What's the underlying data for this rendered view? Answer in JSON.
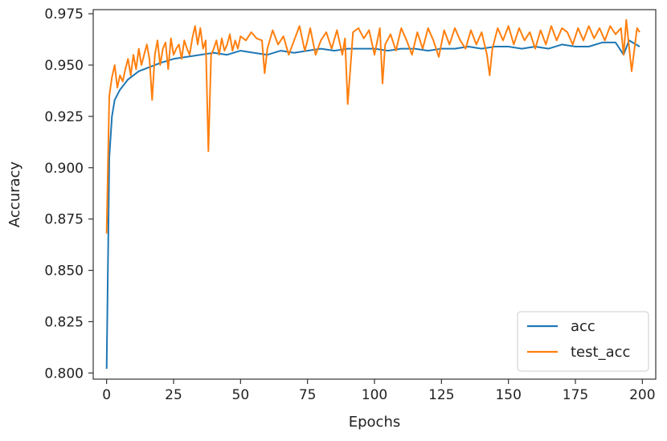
{
  "chart_data": {
    "type": "line",
    "title": "",
    "xlabel": "Epochs",
    "ylabel": "Accuracy",
    "xlim": [
      -5,
      205
    ],
    "ylim": [
      0.797,
      0.977
    ],
    "xticks": [
      0,
      25,
      50,
      75,
      100,
      125,
      150,
      175,
      200
    ],
    "xtick_labels": [
      "0",
      "25",
      "50",
      "75",
      "100",
      "125",
      "150",
      "175",
      "200"
    ],
    "yticks": [
      0.8,
      0.825,
      0.85,
      0.875,
      0.9,
      0.925,
      0.95,
      0.975
    ],
    "ytick_labels": [
      "0.800",
      "0.825",
      "0.850",
      "0.875",
      "0.900",
      "0.925",
      "0.950",
      "0.975"
    ],
    "grid": false,
    "legend_position": "bottom-right",
    "series": [
      {
        "name": "acc",
        "color": "#1f77b4",
        "x": [
          0,
          1,
          2,
          3,
          5,
          8,
          12,
          16,
          20,
          25,
          30,
          35,
          40,
          45,
          50,
          55,
          60,
          65,
          70,
          75,
          80,
          85,
          90,
          95,
          100,
          105,
          110,
          115,
          120,
          125,
          130,
          135,
          140,
          145,
          150,
          155,
          160,
          165,
          170,
          175,
          180,
          185,
          190,
          193,
          195,
          199
        ],
        "y": [
          0.802,
          0.905,
          0.925,
          0.933,
          0.938,
          0.943,
          0.947,
          0.949,
          0.951,
          0.953,
          0.954,
          0.955,
          0.956,
          0.955,
          0.957,
          0.956,
          0.955,
          0.957,
          0.956,
          0.957,
          0.958,
          0.957,
          0.958,
          0.958,
          0.958,
          0.957,
          0.958,
          0.958,
          0.957,
          0.958,
          0.958,
          0.959,
          0.958,
          0.959,
          0.959,
          0.958,
          0.959,
          0.958,
          0.96,
          0.959,
          0.959,
          0.961,
          0.961,
          0.955,
          0.962,
          0.959
        ]
      },
      {
        "name": "test_acc",
        "color": "#ff7f0e",
        "x": [
          0,
          1,
          2,
          3,
          4,
          5,
          6,
          7,
          8,
          9,
          10,
          11,
          12,
          13,
          14,
          15,
          16,
          17,
          18,
          19,
          20,
          21,
          22,
          23,
          24,
          25,
          26,
          27,
          28,
          29,
          30,
          31,
          32,
          33,
          34,
          35,
          36,
          37,
          38,
          39,
          40,
          41,
          42,
          43,
          44,
          45,
          46,
          47,
          48,
          49,
          50,
          52,
          54,
          56,
          58,
          59,
          60,
          62,
          64,
          66,
          68,
          70,
          72,
          74,
          75,
          76,
          78,
          80,
          82,
          84,
          86,
          88,
          89,
          90,
          92,
          94,
          96,
          98,
          100,
          102,
          103,
          104,
          106,
          108,
          110,
          112,
          114,
          116,
          118,
          120,
          122,
          124,
          126,
          128,
          130,
          132,
          134,
          136,
          138,
          140,
          142,
          143,
          144,
          146,
          148,
          150,
          152,
          154,
          156,
          158,
          160,
          162,
          164,
          166,
          168,
          170,
          172,
          174,
          176,
          178,
          180,
          182,
          184,
          186,
          188,
          190,
          192,
          193,
          194,
          196,
          198,
          199
        ],
        "y": [
          0.868,
          0.935,
          0.944,
          0.95,
          0.939,
          0.945,
          0.942,
          0.948,
          0.953,
          0.945,
          0.955,
          0.948,
          0.958,
          0.95,
          0.955,
          0.96,
          0.953,
          0.933,
          0.955,
          0.962,
          0.95,
          0.958,
          0.961,
          0.948,
          0.963,
          0.955,
          0.958,
          0.96,
          0.953,
          0.962,
          0.958,
          0.955,
          0.963,
          0.969,
          0.96,
          0.968,
          0.958,
          0.962,
          0.908,
          0.955,
          0.958,
          0.962,
          0.955,
          0.963,
          0.957,
          0.96,
          0.965,
          0.957,
          0.962,
          0.958,
          0.964,
          0.962,
          0.966,
          0.963,
          0.962,
          0.946,
          0.958,
          0.967,
          0.96,
          0.964,
          0.955,
          0.962,
          0.969,
          0.957,
          0.962,
          0.968,
          0.955,
          0.962,
          0.966,
          0.958,
          0.967,
          0.955,
          0.963,
          0.931,
          0.966,
          0.968,
          0.963,
          0.967,
          0.955,
          0.968,
          0.941,
          0.96,
          0.965,
          0.957,
          0.968,
          0.962,
          0.955,
          0.966,
          0.958,
          0.968,
          0.962,
          0.954,
          0.967,
          0.96,
          0.968,
          0.962,
          0.958,
          0.967,
          0.96,
          0.966,
          0.955,
          0.945,
          0.958,
          0.968,
          0.962,
          0.969,
          0.96,
          0.968,
          0.962,
          0.966,
          0.958,
          0.967,
          0.96,
          0.969,
          0.962,
          0.968,
          0.966,
          0.96,
          0.968,
          0.962,
          0.969,
          0.963,
          0.968,
          0.962,
          0.969,
          0.965,
          0.968,
          0.955,
          0.972,
          0.947,
          0.968,
          0.966
        ]
      }
    ]
  }
}
